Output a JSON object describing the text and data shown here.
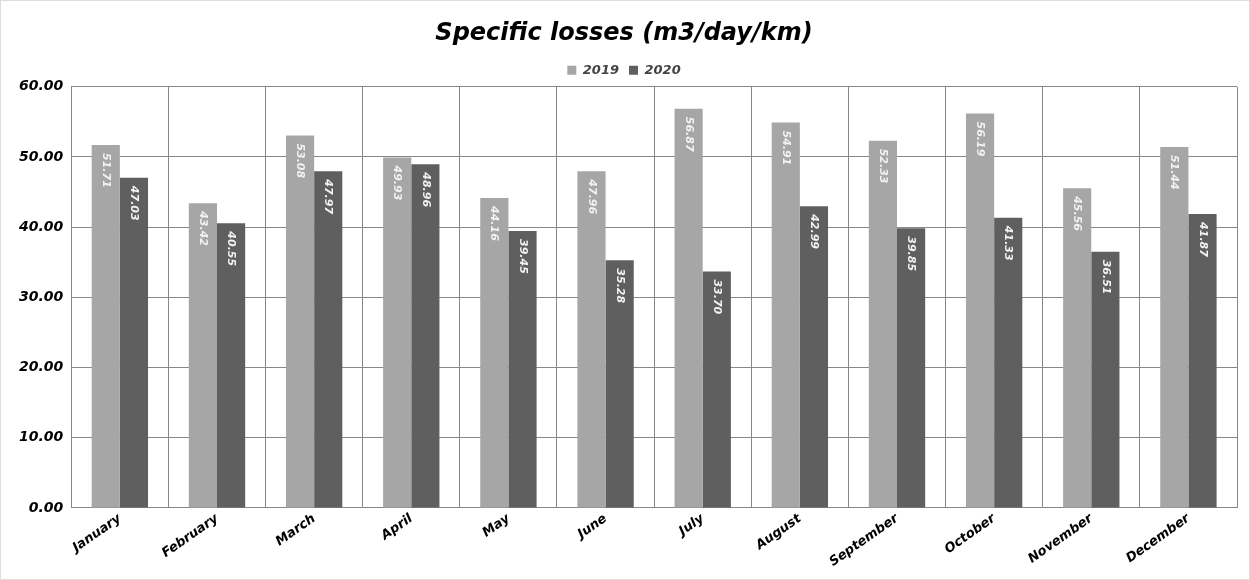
{
  "chart_data": {
    "type": "bar",
    "title": "Specific losses (m3/day/km)",
    "categories": [
      "January",
      "February",
      "March",
      "April",
      "May",
      "June",
      "July",
      "August",
      "September",
      "October",
      "November",
      "December"
    ],
    "series": [
      {
        "name": "2019",
        "color": "#a6a6a6",
        "values": [
          51.71,
          43.42,
          53.08,
          49.93,
          44.16,
          47.96,
          56.87,
          54.91,
          52.33,
          56.19,
          45.56,
          51.44
        ],
        "value_labels": [
          "51.71",
          "43.42",
          "53.08",
          "49.93",
          "44.16",
          "47.96",
          "56.87",
          "54.91",
          "52.33",
          "56.19",
          "45.56",
          "51.44"
        ]
      },
      {
        "name": "2020",
        "color": "#5f5f5f",
        "values": [
          47.03,
          40.55,
          47.97,
          48.96,
          39.45,
          35.28,
          33.7,
          42.99,
          39.85,
          41.33,
          36.51,
          41.87
        ],
        "value_labels": [
          "47.03",
          "40.55",
          "47.97",
          "48.96",
          "39.45",
          "35.28",
          "33.70",
          "42.99",
          "39.85",
          "41.33",
          "36.51",
          "41.87"
        ]
      }
    ],
    "ylim": [
      0,
      60
    ],
    "yticks": [
      {
        "value": 0,
        "label": "0.00"
      },
      {
        "value": 10,
        "label": "10.00"
      },
      {
        "value": 20,
        "label": "20.00"
      },
      {
        "value": 30,
        "label": "30.00"
      },
      {
        "value": 40,
        "label": "40.00"
      },
      {
        "value": 50,
        "label": "50.00"
      },
      {
        "value": 60,
        "label": "60.00"
      }
    ],
    "grid": true,
    "legend": "top"
  }
}
